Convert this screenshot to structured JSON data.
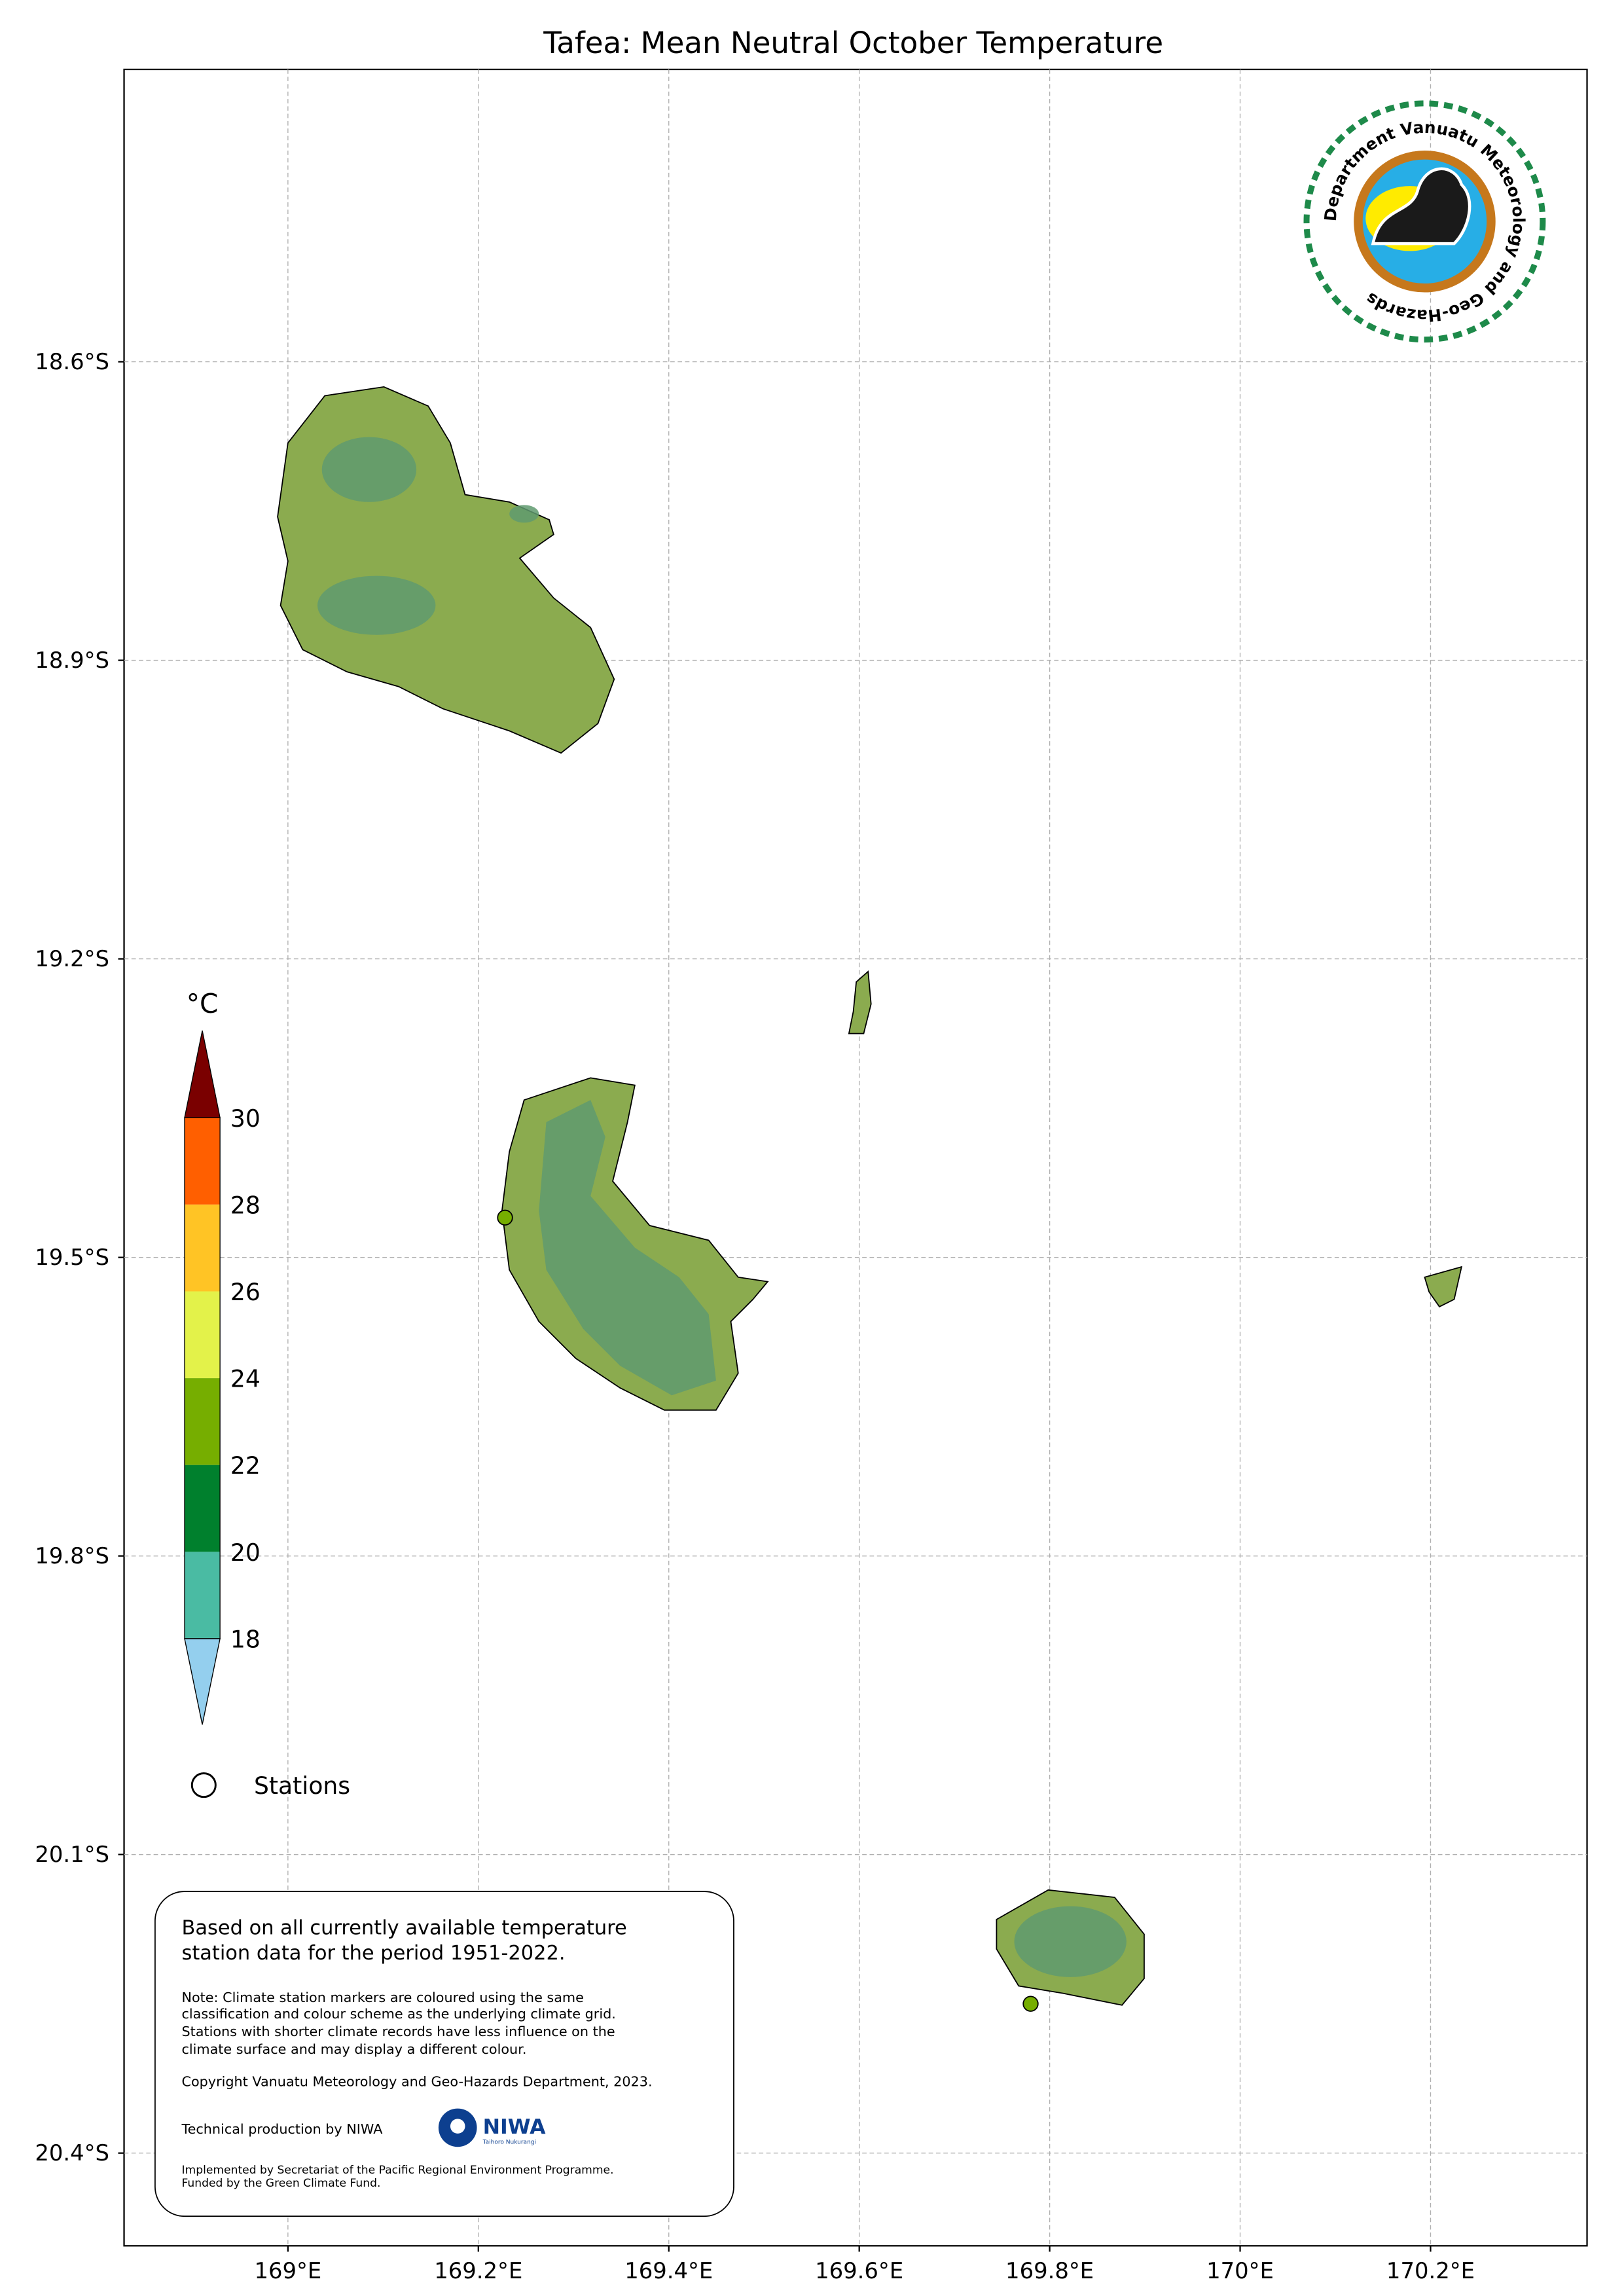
{
  "title": "Tafea: Mean Neutral October Temperature",
  "axes": {
    "x_ticks": [
      {
        "lon": 169.0,
        "label": "169°E"
      },
      {
        "lon": 169.2,
        "label": "169.2°E"
      },
      {
        "lon": 169.4,
        "label": "169.4°E"
      },
      {
        "lon": 169.6,
        "label": "169.6°E"
      },
      {
        "lon": 169.8,
        "label": "169.8°E"
      },
      {
        "lon": 170.0,
        "label": "170°E"
      },
      {
        "lon": 170.2,
        "label": "170.2°E"
      }
    ],
    "y_ticks": [
      {
        "lat": -18.6,
        "label": "18.6°S"
      },
      {
        "lat": -18.9,
        "label": "18.9°S"
      },
      {
        "lat": -19.2,
        "label": "19.2°S"
      },
      {
        "lat": -19.5,
        "label": "19.5°S"
      },
      {
        "lat": -19.8,
        "label": "19.8°S"
      },
      {
        "lat": -20.1,
        "label": "20.1°S"
      },
      {
        "lat": -20.4,
        "label": "20.4°S"
      }
    ],
    "grid": true
  },
  "colorbar": {
    "unit": "°C",
    "ticks": [
      "30",
      "28",
      "26",
      "24",
      "22",
      "20",
      "18"
    ],
    "bands": [
      {
        "range": ">30",
        "color": "#7a0000"
      },
      {
        "range": "28-30",
        "color": "#ff5f00"
      },
      {
        "range": "26-28",
        "color": "#ffc425"
      },
      {
        "range": "24-26",
        "color": "#e3f24a"
      },
      {
        "range": "22-24",
        "color": "#76ae00"
      },
      {
        "range": "20-22",
        "color": "#00802d"
      },
      {
        "range": "18-20",
        "color": "#4abba3"
      },
      {
        "range": "<18",
        "color": "#94cfee"
      }
    ]
  },
  "legend": {
    "stations_label": "Stations"
  },
  "stations": [
    {
      "lon": 169.228,
      "lat": -19.46,
      "color": "#76ae00"
    },
    {
      "lon": 169.78,
      "lat": -20.25,
      "color": "#76ae00"
    }
  ],
  "info_box": {
    "line1": "Based on all currently available temperature",
    "line2": "station data for the period 1951-2022.",
    "note1": "Note: Climate station markers are coloured using the same",
    "note2": "classification and colour scheme as the underlying climate grid.",
    "note3": "Stations with shorter climate records have less influence on the",
    "note4": "climate surface and may display a different colour.",
    "copyright": "Copyright Vanuatu Meteorology and Geo-Hazards Department, 2023.",
    "technical": "Technical production by NIWA",
    "niwa_logo": "NIWA",
    "niwa_sub": "Taihoro Nukurangi",
    "impl1": "Implemented by Secretariat of the Pacific Regional Environment Programme.",
    "impl2": "Funded by the Green Climate Fund."
  },
  "logo": {
    "text": "Department Vanuatu Meteorology and Geo-Hazards"
  }
}
